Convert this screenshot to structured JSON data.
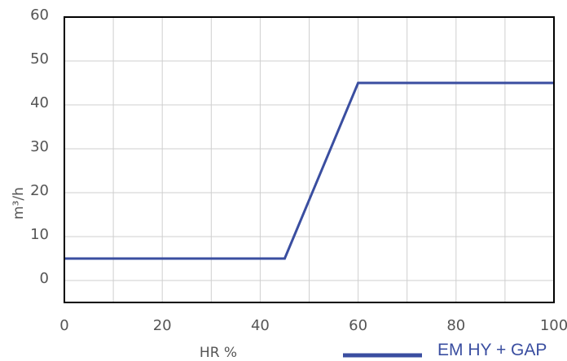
{
  "chart_data": {
    "type": "line",
    "title": "",
    "xlabel": "HR %",
    "ylabel": "m³/h",
    "xlim": [
      0,
      100
    ],
    "ylim": [
      -5,
      60
    ],
    "x_ticks": [
      0,
      20,
      40,
      60,
      80,
      100
    ],
    "x_tick_labels": [
      "0",
      "20",
      "40",
      "60",
      "80",
      "100"
    ],
    "y_ticks": [
      0,
      10,
      20,
      30,
      40,
      50,
      60
    ],
    "y_tick_labels": [
      "0",
      "10",
      "20",
      "30",
      "40",
      "50",
      "60"
    ],
    "grid": true,
    "legend_position": "bottom-right",
    "series": [
      {
        "name": "EM HY + GAP",
        "color": "#3a4ea0",
        "x": [
          0,
          45,
          60,
          100
        ],
        "y": [
          5,
          5,
          45,
          45
        ]
      }
    ]
  }
}
